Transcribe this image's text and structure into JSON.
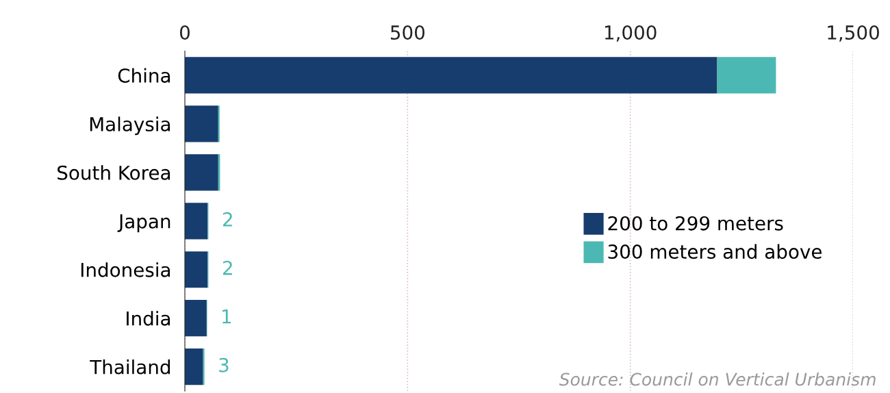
{
  "chart_data": {
    "type": "bar",
    "orientation": "horizontal",
    "stacked": true,
    "categories": [
      "China",
      "Malaysia",
      "South Korea",
      "Japan",
      "Indonesia",
      "India",
      "Thailand"
    ],
    "series": [
      {
        "name": "200 to 299 meters",
        "color": "#173d6e",
        "values": [
          1195,
          75,
          75,
          51,
          51,
          49,
          41
        ]
      },
      {
        "name": "300 meters and above",
        "color": "#4cb8b3",
        "values": [
          132,
          3,
          4,
          2,
          2,
          1,
          3
        ],
        "value_labels": [
          null,
          null,
          null,
          "2",
          "2",
          "1",
          "3"
        ]
      }
    ],
    "xlim": [
      0,
      1500
    ],
    "xticks": [
      0,
      500,
      {
        "value": 1000,
        "label": "1,000"
      },
      {
        "value": 1500,
        "label": "1,500"
      }
    ],
    "grid": "x",
    "legend": "right",
    "annotations": [
      "Source: Council on Vertical Urbanism"
    ]
  }
}
